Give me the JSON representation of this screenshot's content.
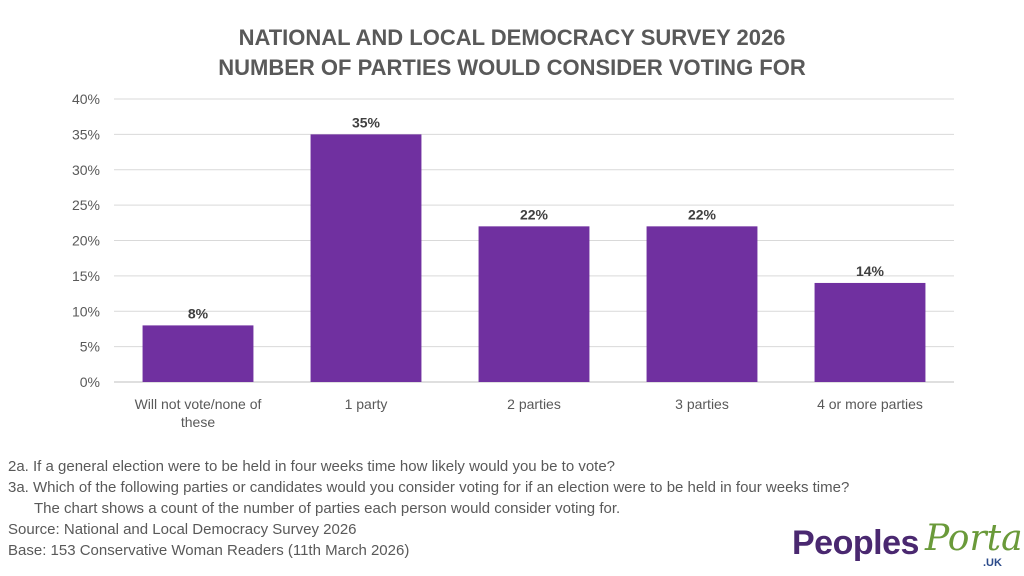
{
  "chart_data": {
    "type": "bar",
    "title": [
      "NATIONAL AND LOCAL DEMOCRACY SURVEY 2026",
      "NUMBER OF PARTIES WOULD CONSIDER VOTING FOR"
    ],
    "categories": [
      [
        "Will not vote/none of",
        "these"
      ],
      [
        "1 party"
      ],
      [
        "2 parties"
      ],
      [
        "3 parties"
      ],
      [
        "4 or more parties"
      ]
    ],
    "values": [
      8,
      35,
      22,
      22,
      14
    ],
    "data_labels": [
      "8%",
      "35%",
      "22%",
      "22%",
      "14%"
    ],
    "yticks": [
      "0%",
      "5%",
      "10%",
      "15%",
      "20%",
      "25%",
      "30%",
      "35%",
      "40%"
    ],
    "ylim": [
      0,
      40
    ],
    "xlabel": "",
    "ylabel": "",
    "grid": true,
    "bar_color": "#7030A0"
  },
  "notes": {
    "q2a": "2a. If a general election were to be held in four weeks time how likely would you be to vote?",
    "q3a": "3a. Which of the following parties or candidates would you consider voting for if an election were to be held in four weeks time?",
    "q3a_note": "The chart shows a count of the number of parties each person would consider voting for.",
    "source": "Source: National and Local Democracy Survey 2026",
    "base": "Base: 153 Conservative Woman Readers (11th March 2026)"
  },
  "logo": {
    "part1": "Peoples",
    "part2": "Portal",
    "suffix": ".UK"
  }
}
